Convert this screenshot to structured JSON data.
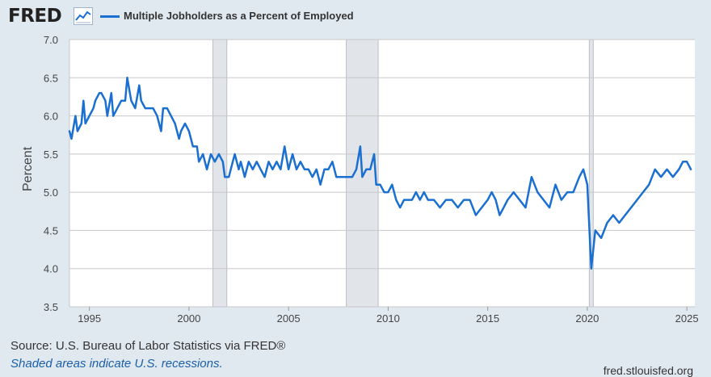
{
  "header": {
    "logo_text": "FRED",
    "logo_icon": "line-chart-icon",
    "legend_label": "Multiple Jobholders as a Percent of Employed"
  },
  "footer": {
    "source": "Source: U.S. Bureau of Labor Statistics via FRED®",
    "recession_note": "Shaded areas indicate U.S. recessions.",
    "site": "fred.stlouisfed.org"
  },
  "colors": {
    "line": "#1a6fd1",
    "background": "#e1e9f0",
    "plot_background": "#ffffff",
    "recession": "#e1e5ea",
    "grid": "#c8c8c8"
  },
  "chart_data": {
    "type": "line",
    "title": "",
    "xlabel": "",
    "ylabel": "Percent",
    "ylim": [
      3.5,
      7.0
    ],
    "xlim": [
      1994.0,
      2025.4
    ],
    "yticks": [
      "3.5",
      "4.0",
      "4.5",
      "5.0",
      "5.5",
      "6.0",
      "6.5",
      "7.0"
    ],
    "xticks": [
      "1995",
      "2000",
      "2005",
      "2010",
      "2015",
      "2020",
      "2025"
    ],
    "grid": true,
    "legend_position": "top-left",
    "recessions": [
      [
        2001.2,
        2001.9
      ],
      [
        2007.9,
        2009.5
      ],
      [
        2020.1,
        2020.3
      ]
    ],
    "series": [
      {
        "name": "Multiple Jobholders as a Percent of Employed",
        "points": [
          [
            1994.0,
            5.8
          ],
          [
            1994.1,
            5.7
          ],
          [
            1994.3,
            6.0
          ],
          [
            1994.4,
            5.8
          ],
          [
            1994.6,
            5.9
          ],
          [
            1994.7,
            6.2
          ],
          [
            1994.8,
            5.9
          ],
          [
            1995.0,
            6.0
          ],
          [
            1995.2,
            6.1
          ],
          [
            1995.3,
            6.2
          ],
          [
            1995.5,
            6.3
          ],
          [
            1995.6,
            6.3
          ],
          [
            1995.8,
            6.2
          ],
          [
            1995.9,
            6.0
          ],
          [
            1996.1,
            6.3
          ],
          [
            1996.2,
            6.0
          ],
          [
            1996.4,
            6.1
          ],
          [
            1996.6,
            6.2
          ],
          [
            1996.8,
            6.2
          ],
          [
            1996.9,
            6.5
          ],
          [
            1997.1,
            6.2
          ],
          [
            1997.3,
            6.1
          ],
          [
            1997.5,
            6.4
          ],
          [
            1997.6,
            6.2
          ],
          [
            1997.8,
            6.1
          ],
          [
            1998.0,
            6.1
          ],
          [
            1998.2,
            6.1
          ],
          [
            1998.4,
            6.0
          ],
          [
            1998.6,
            5.8
          ],
          [
            1998.7,
            6.1
          ],
          [
            1998.9,
            6.1
          ],
          [
            1999.1,
            6.0
          ],
          [
            1999.3,
            5.9
          ],
          [
            1999.5,
            5.7
          ],
          [
            1999.6,
            5.8
          ],
          [
            1999.8,
            5.9
          ],
          [
            2000.0,
            5.8
          ],
          [
            2000.2,
            5.6
          ],
          [
            2000.4,
            5.6
          ],
          [
            2000.5,
            5.4
          ],
          [
            2000.7,
            5.5
          ],
          [
            2000.9,
            5.3
          ],
          [
            2001.1,
            5.5
          ],
          [
            2001.3,
            5.4
          ],
          [
            2001.5,
            5.5
          ],
          [
            2001.7,
            5.4
          ],
          [
            2001.8,
            5.2
          ],
          [
            2002.0,
            5.2
          ],
          [
            2002.2,
            5.4
          ],
          [
            2002.3,
            5.5
          ],
          [
            2002.5,
            5.3
          ],
          [
            2002.6,
            5.4
          ],
          [
            2002.8,
            5.2
          ],
          [
            2003.0,
            5.4
          ],
          [
            2003.2,
            5.3
          ],
          [
            2003.4,
            5.4
          ],
          [
            2003.6,
            5.3
          ],
          [
            2003.8,
            5.2
          ],
          [
            2004.0,
            5.4
          ],
          [
            2004.2,
            5.3
          ],
          [
            2004.4,
            5.4
          ],
          [
            2004.6,
            5.3
          ],
          [
            2004.8,
            5.6
          ],
          [
            2005.0,
            5.3
          ],
          [
            2005.2,
            5.5
          ],
          [
            2005.4,
            5.3
          ],
          [
            2005.6,
            5.4
          ],
          [
            2005.8,
            5.3
          ],
          [
            2006.0,
            5.3
          ],
          [
            2006.2,
            5.2
          ],
          [
            2006.4,
            5.3
          ],
          [
            2006.6,
            5.1
          ],
          [
            2006.8,
            5.3
          ],
          [
            2007.0,
            5.3
          ],
          [
            2007.2,
            5.4
          ],
          [
            2007.4,
            5.2
          ],
          [
            2007.6,
            5.2
          ],
          [
            2008.0,
            5.2
          ],
          [
            2008.2,
            5.2
          ],
          [
            2008.4,
            5.3
          ],
          [
            2008.6,
            5.6
          ],
          [
            2008.7,
            5.2
          ],
          [
            2008.9,
            5.3
          ],
          [
            2009.1,
            5.3
          ],
          [
            2009.3,
            5.5
          ],
          [
            2009.4,
            5.1
          ],
          [
            2009.6,
            5.1
          ],
          [
            2009.8,
            5.0
          ],
          [
            2010.0,
            5.0
          ],
          [
            2010.2,
            5.1
          ],
          [
            2010.4,
            4.9
          ],
          [
            2010.6,
            4.8
          ],
          [
            2010.8,
            4.9
          ],
          [
            2011.0,
            4.9
          ],
          [
            2011.2,
            4.9
          ],
          [
            2011.4,
            5.0
          ],
          [
            2011.6,
            4.9
          ],
          [
            2011.8,
            5.0
          ],
          [
            2012.0,
            4.9
          ],
          [
            2012.3,
            4.9
          ],
          [
            2012.6,
            4.8
          ],
          [
            2012.9,
            4.9
          ],
          [
            2013.2,
            4.9
          ],
          [
            2013.5,
            4.8
          ],
          [
            2013.8,
            4.9
          ],
          [
            2014.1,
            4.9
          ],
          [
            2014.4,
            4.7
          ],
          [
            2014.7,
            4.8
          ],
          [
            2015.0,
            4.9
          ],
          [
            2015.2,
            5.0
          ],
          [
            2015.4,
            4.9
          ],
          [
            2015.6,
            4.7
          ],
          [
            2015.8,
            4.8
          ],
          [
            2016.0,
            4.9
          ],
          [
            2016.3,
            5.0
          ],
          [
            2016.6,
            4.9
          ],
          [
            2016.9,
            4.8
          ],
          [
            2017.2,
            5.2
          ],
          [
            2017.5,
            5.0
          ],
          [
            2017.8,
            4.9
          ],
          [
            2018.1,
            4.8
          ],
          [
            2018.4,
            5.1
          ],
          [
            2018.7,
            4.9
          ],
          [
            2019.0,
            5.0
          ],
          [
            2019.3,
            5.0
          ],
          [
            2019.6,
            5.2
          ],
          [
            2019.8,
            5.3
          ],
          [
            2020.0,
            5.1
          ],
          [
            2020.2,
            4.0
          ],
          [
            2020.4,
            4.5
          ],
          [
            2020.7,
            4.4
          ],
          [
            2021.0,
            4.6
          ],
          [
            2021.3,
            4.7
          ],
          [
            2021.6,
            4.6
          ],
          [
            2021.9,
            4.7
          ],
          [
            2022.2,
            4.8
          ],
          [
            2022.5,
            4.9
          ],
          [
            2022.8,
            5.0
          ],
          [
            2023.1,
            5.1
          ],
          [
            2023.4,
            5.3
          ],
          [
            2023.7,
            5.2
          ],
          [
            2024.0,
            5.3
          ],
          [
            2024.3,
            5.2
          ],
          [
            2024.6,
            5.3
          ],
          [
            2024.8,
            5.4
          ],
          [
            2025.0,
            5.4
          ],
          [
            2025.2,
            5.3
          ]
        ]
      }
    ]
  }
}
